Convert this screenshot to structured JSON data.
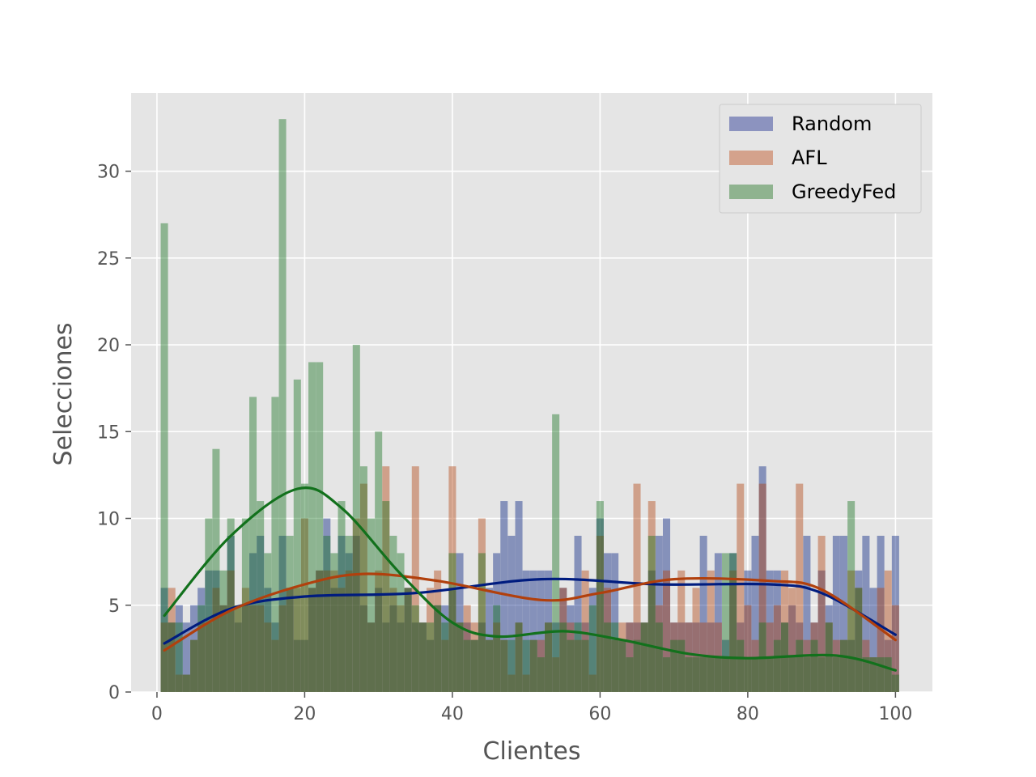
{
  "chart_data": {
    "type": "bar",
    "xlabel": "Clientes",
    "ylabel": "Selecciones",
    "xlim": [
      -3.5,
      105
    ],
    "ylim": [
      0,
      34.5
    ],
    "xticks": [
      0,
      20,
      40,
      60,
      80,
      100
    ],
    "yticks": [
      0,
      5,
      10,
      15,
      20,
      25,
      30
    ],
    "grid": true,
    "legend_position": "top-right",
    "x": [
      1,
      2,
      3,
      4,
      5,
      6,
      7,
      8,
      9,
      10,
      11,
      12,
      13,
      14,
      15,
      16,
      17,
      18,
      19,
      20,
      21,
      22,
      23,
      24,
      25,
      26,
      27,
      28,
      29,
      30,
      31,
      32,
      33,
      34,
      35,
      36,
      37,
      38,
      39,
      40,
      41,
      42,
      43,
      44,
      45,
      46,
      47,
      48,
      49,
      50,
      51,
      52,
      53,
      54,
      55,
      56,
      57,
      58,
      59,
      60,
      61,
      62,
      63,
      64,
      65,
      66,
      67,
      68,
      69,
      70,
      71,
      72,
      73,
      74,
      75,
      76,
      77,
      78,
      79,
      80,
      81,
      82,
      83,
      84,
      85,
      86,
      87,
      88,
      89,
      90,
      91,
      92,
      93,
      94,
      95,
      96,
      97,
      98,
      99,
      100
    ],
    "series": [
      {
        "name": "Random",
        "color": "#001c7f",
        "bar_color": "#8c93bf",
        "values": [
          6,
          4,
          5,
          4,
          5,
          6,
          7,
          7,
          5,
          9,
          4,
          5,
          8,
          9,
          6,
          4,
          9,
          6,
          3,
          3,
          6,
          7,
          10,
          6,
          9,
          8,
          9,
          5,
          4,
          6,
          4,
          5,
          4,
          6,
          4,
          4,
          3,
          5,
          5,
          6,
          8,
          4,
          3,
          4,
          6,
          8,
          11,
          9,
          11,
          7,
          7,
          7,
          7,
          4,
          6,
          5,
          9,
          4,
          6,
          10,
          8,
          8,
          3,
          4,
          4,
          4,
          7,
          9,
          10,
          4,
          4,
          4,
          4,
          9,
          4,
          8,
          3,
          8,
          4,
          7,
          9,
          13,
          7,
          7,
          4,
          5,
          4,
          9,
          4,
          7,
          5,
          9,
          9,
          3,
          7,
          9,
          6,
          9,
          3,
          9
        ],
        "kde": [
          [
            1,
            2.8
          ],
          [
            10,
            4.8
          ],
          [
            20,
            5.5
          ],
          [
            35,
            5.7
          ],
          [
            52,
            6.5
          ],
          [
            68,
            6.2
          ],
          [
            83,
            6.2
          ],
          [
            90,
            5.7
          ],
          [
            100,
            3.3
          ]
        ]
      },
      {
        "name": "AFL",
        "color": "#b1400d",
        "bar_color": "#d4a28c",
        "values": [
          4,
          6,
          1,
          1,
          3,
          4,
          4,
          6,
          5,
          7,
          5,
          6,
          5,
          5,
          4,
          3,
          5,
          6,
          6,
          10,
          6,
          7,
          7,
          7,
          6,
          7,
          10,
          12,
          4,
          7,
          13,
          6,
          5,
          6,
          13,
          4,
          6,
          7,
          3,
          13,
          4,
          5,
          4,
          10,
          3,
          4,
          3,
          1,
          4,
          1,
          3,
          3,
          4,
          2,
          6,
          4,
          3,
          7,
          1,
          9,
          6,
          3,
          4,
          4,
          12,
          4,
          11,
          5,
          7,
          4,
          7,
          4,
          6,
          4,
          7,
          4,
          2,
          7,
          12,
          5,
          3,
          12,
          4,
          5,
          7,
          6,
          12,
          3,
          4,
          9,
          4,
          3,
          3,
          7,
          6,
          3,
          2,
          6,
          7,
          5
        ],
        "kde": [
          [
            1,
            2.4
          ],
          [
            10,
            4.7
          ],
          [
            20,
            6.2
          ],
          [
            28,
            6.8
          ],
          [
            38,
            6.4
          ],
          [
            52,
            5.3
          ],
          [
            60,
            5.7
          ],
          [
            70,
            6.5
          ],
          [
            83,
            6.4
          ],
          [
            90,
            5.9
          ],
          [
            100,
            3.0
          ]
        ]
      },
      {
        "name": "GreedyFed",
        "color": "#12711c",
        "bar_color": "#8fb38f",
        "values": [
          27,
          4,
          4,
          1,
          3,
          5,
          10,
          14,
          7,
          10,
          5,
          10,
          17,
          11,
          8,
          17,
          33,
          9,
          18,
          12,
          19,
          19,
          9,
          8,
          11,
          9,
          20,
          13,
          10,
          15,
          11,
          9,
          8,
          6,
          5,
          4,
          4,
          5,
          4,
          8,
          4,
          3,
          3,
          8,
          3,
          5,
          3,
          3,
          4,
          3,
          3,
          2,
          4,
          16,
          4,
          3,
          4,
          3,
          5,
          11,
          4,
          4,
          3,
          2,
          3,
          4,
          9,
          4,
          2,
          3,
          3,
          2,
          2,
          2,
          2,
          2,
          8,
          8,
          3,
          2,
          2,
          4,
          2,
          3,
          4,
          2,
          3,
          2,
          3,
          2,
          4,
          2,
          3,
          11,
          6,
          2,
          2,
          2,
          2,
          1
        ],
        "kde": [
          [
            1,
            4.4
          ],
          [
            10,
            9.0
          ],
          [
            19,
            11.7
          ],
          [
            25,
            10.6
          ],
          [
            33,
            6.8
          ],
          [
            40,
            4.0
          ],
          [
            46,
            3.2
          ],
          [
            55,
            3.5
          ],
          [
            63,
            3.0
          ],
          [
            72,
            2.2
          ],
          [
            80,
            1.95
          ],
          [
            92,
            2.1
          ],
          [
            100,
            1.25
          ]
        ]
      }
    ]
  }
}
